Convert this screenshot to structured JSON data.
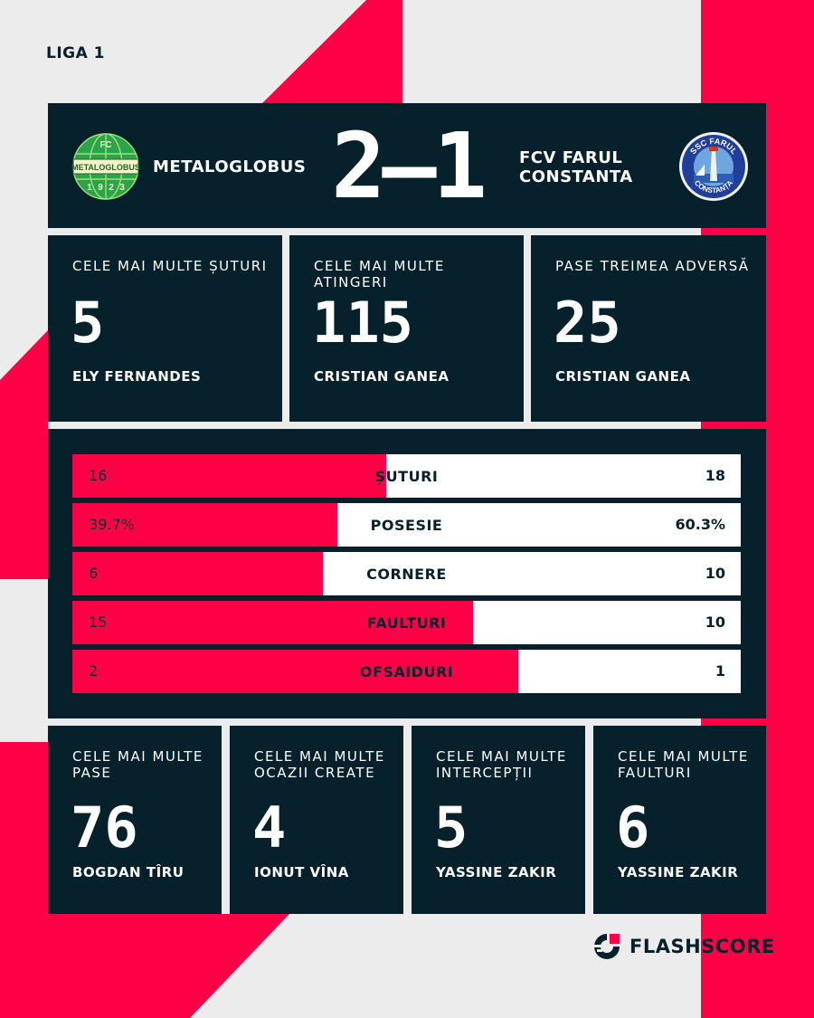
{
  "colors": {
    "background": "#ececec",
    "accent": "#ff0046",
    "panel": "#06212c",
    "bar_away": "#ffffff"
  },
  "league": "LIGA 1",
  "match": {
    "home_team": "METALOGLOBUS",
    "away_team": "FCV FARUL CONSTANTA",
    "score": "2–1",
    "home_logo": {
      "icon": "metaloglobus-crest",
      "texts": [
        "FC",
        "METALOGLOBUS",
        "1",
        "9",
        "2",
        "3"
      ]
    },
    "away_logo": {
      "icon": "farul-constanta-crest",
      "texts": [
        "SSC FARUL",
        "CONSTANȚA"
      ]
    }
  },
  "top_stats": [
    {
      "label": "CELE MAI MULTE ȘUTURI",
      "value": "5",
      "player": "ELY FERNANDES"
    },
    {
      "label": "CELE MAI MULTE ATINGERI",
      "value": "115",
      "player": "CRISTIAN GANEA"
    },
    {
      "label": "PASE TREIMEA ADVERSĂ",
      "value": "25",
      "player": "CRISTIAN GANEA"
    }
  ],
  "team_stats": [
    {
      "name": "ȘUTURI",
      "home": "16",
      "away": "18",
      "home_share": 0.47
    },
    {
      "name": "POSESIE",
      "home": "39.7%",
      "away": "60.3%",
      "home_share": 0.397
    },
    {
      "name": "CORNERE",
      "home": "6",
      "away": "10",
      "home_share": 0.375
    },
    {
      "name": "FAULTURI",
      "home": "15",
      "away": "10",
      "home_share": 0.6
    },
    {
      "name": "OFSAIDURI",
      "home": "2",
      "away": "1",
      "home_share": 0.667
    }
  ],
  "bottom_stats": [
    {
      "label": "CELE MAI MULTE PASE",
      "value": "76",
      "player": "BOGDAN TÎRU"
    },
    {
      "label": "CELE MAI MULTE OCAZII CREATE",
      "value": "4",
      "player": "IONUT VÎNA"
    },
    {
      "label": "CELE MAI MULTE INTERCEPȚII",
      "value": "5",
      "player": "YASSINE ZAKIR"
    },
    {
      "label": "CELE MAI MULTE FAULTURI",
      "value": "6",
      "player": "YASSINE ZAKIR"
    }
  ],
  "brand": {
    "name": "FLASHSCORE",
    "icon": "flashscore-logo-icon"
  }
}
